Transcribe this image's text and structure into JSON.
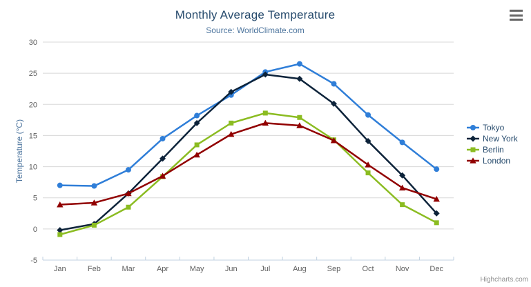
{
  "colors": {
    "background": "#ffffff",
    "title": "#274b6d",
    "subtitle": "#4d759e",
    "axis_label": "#606060",
    "axis_title": "#4d759e",
    "grid": "#d8d8d8",
    "axis_line": "#c0d0e0",
    "legend_text": "#274b6d",
    "credits": "#909090",
    "menu_icon": "#666666"
  },
  "export_menu": {
    "icon": "hamburger-icon"
  },
  "credits": {
    "label": "Highcharts.com"
  },
  "chart_data": {
    "type": "line",
    "title": "Monthly Average Temperature",
    "subtitle": "Source: WorldClimate.com",
    "xlabel": "",
    "ylabel": "Temperature (°C)",
    "ylim": [
      -5,
      30
    ],
    "ytick_interval": 5,
    "grid": true,
    "legend_position": "right",
    "categories": [
      "Jan",
      "Feb",
      "Mar",
      "Apr",
      "May",
      "Jun",
      "Jul",
      "Aug",
      "Sep",
      "Oct",
      "Nov",
      "Dec"
    ],
    "series": [
      {
        "name": "Tokyo",
        "color": "#2f7ed8",
        "marker": "circle",
        "values": [
          7.0,
          6.9,
          9.5,
          14.5,
          18.2,
          21.5,
          25.2,
          26.5,
          23.3,
          18.3,
          13.9,
          9.6
        ]
      },
      {
        "name": "New York",
        "color": "#0d233a",
        "marker": "diamond",
        "values": [
          -0.2,
          0.8,
          5.7,
          11.3,
          17.0,
          22.0,
          24.8,
          24.1,
          20.1,
          14.1,
          8.6,
          2.5
        ]
      },
      {
        "name": "Berlin",
        "color": "#8bbc21",
        "marker": "square",
        "values": [
          -0.9,
          0.6,
          3.5,
          8.4,
          13.5,
          17.0,
          18.6,
          17.9,
          14.3,
          9.0,
          3.9,
          1.0
        ]
      },
      {
        "name": "London",
        "color": "#910000",
        "marker": "triangle",
        "values": [
          3.9,
          4.2,
          5.7,
          8.5,
          11.9,
          15.2,
          17.0,
          16.6,
          14.2,
          10.3,
          6.6,
          4.8
        ]
      }
    ]
  }
}
